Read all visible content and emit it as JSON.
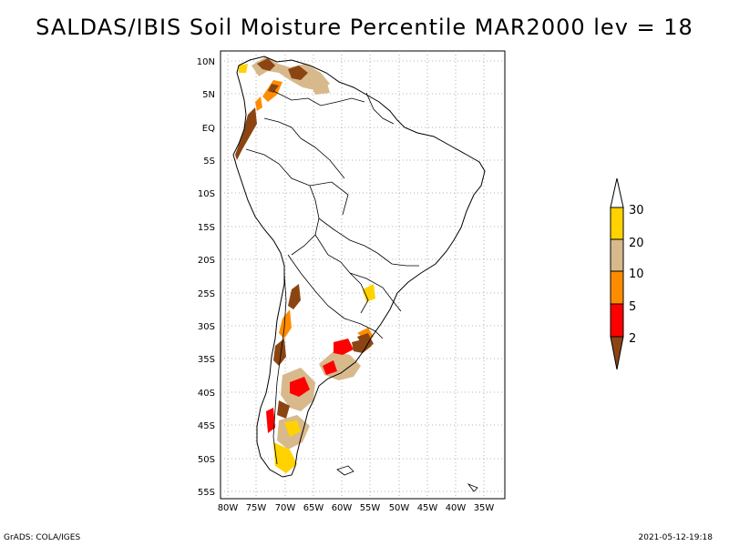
{
  "title": "SALDAS/IBIS Soil Moisture Percentile MAR2000 lev = 18",
  "map": {
    "lat_labels": [
      "10N",
      "5N",
      "EQ",
      "5S",
      "10S",
      "15S",
      "20S",
      "25S",
      "30S",
      "35S",
      "40S",
      "45S",
      "50S",
      "55S"
    ],
    "lon_labels": [
      "80W",
      "75W",
      "70W",
      "65W",
      "60W",
      "55W",
      "50W",
      "45W",
      "40W",
      "35W"
    ],
    "region": "South America"
  },
  "colorbar": {
    "labels": [
      "30",
      "20",
      "10",
      "5",
      "2"
    ],
    "colors": [
      "#ffd200",
      "#d7b98c",
      "#ff8c00",
      "#ff0000",
      "#8b4513"
    ],
    "top_color": "#ffffff",
    "bottom_color": "#8b4513"
  },
  "footer": {
    "left": "GrADS: COLA/IGES",
    "right": "2021-05-12-19:18"
  }
}
